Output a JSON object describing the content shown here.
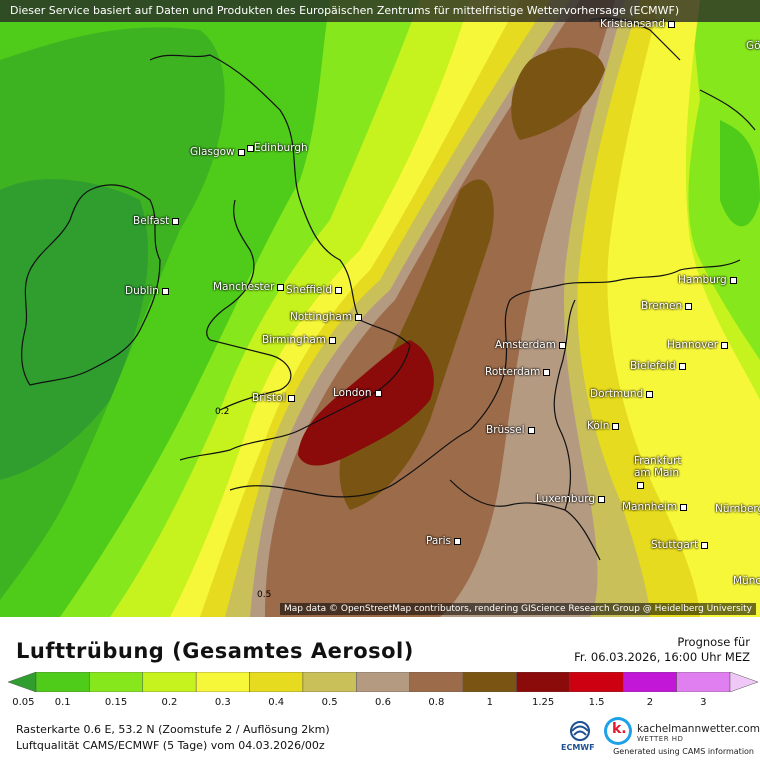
{
  "header": {
    "banner": "Dieser Service basiert auf Daten und Produkten des Europäischen Zentrums für mittelfristige Wettervorhersage (ECMWF)"
  },
  "map": {
    "attribution": "Map data © OpenStreetMap contributors, rendering GIScience Research Group @ Heidelberg University",
    "cities": [
      {
        "name": "Kristiansand"
      },
      {
        "name": "Gö"
      },
      {
        "name": "Glasgow"
      },
      {
        "name": "Edinburgh"
      },
      {
        "name": "Belfast"
      },
      {
        "name": "Dublin"
      },
      {
        "name": "Manchester"
      },
      {
        "name": "Sheffield"
      },
      {
        "name": "Nottingham"
      },
      {
        "name": "Birmingham"
      },
      {
        "name": "Bristol"
      },
      {
        "name": "London"
      },
      {
        "name": "Amsterdam"
      },
      {
        "name": "Rotterdam"
      },
      {
        "name": "Brüssel"
      },
      {
        "name": "Luxemburg"
      },
      {
        "name": "Paris"
      },
      {
        "name": "Hamburg"
      },
      {
        "name": "Bremen"
      },
      {
        "name": "Hannover"
      },
      {
        "name": "Bielefeld"
      },
      {
        "name": "Dortmund"
      },
      {
        "name": "Köln"
      },
      {
        "name": "Frankfurt am Main"
      },
      {
        "name": "Mannheim"
      },
      {
        "name": "Stuttgart"
      },
      {
        "name": "Nürnberg"
      },
      {
        "name": "Münc"
      }
    ],
    "isolines": [
      {
        "value": "0.2"
      },
      {
        "value": "0.5"
      }
    ]
  },
  "legend": {
    "title": "Lufttrübung (Gesamtes Aerosol)",
    "forecast_label": "Prognose für",
    "forecast_time": "Fr. 06.03.2026, 16:00 Uhr MEZ",
    "scale": [
      {
        "label": "0.05",
        "color": "#2f9e2f"
      },
      {
        "label": "0.1",
        "color": "#4fcc1a"
      },
      {
        "label": "0.15",
        "color": "#86e81c"
      },
      {
        "label": "0.2",
        "color": "#c6f21e"
      },
      {
        "label": "0.3",
        "color": "#f7f73a"
      },
      {
        "label": "0.4",
        "color": "#e6db1e"
      },
      {
        "label": "0.5",
        "color": "#c9c05a"
      },
      {
        "label": "0.6",
        "color": "#b59a82"
      },
      {
        "label": "0.8",
        "color": "#9c6b4a"
      },
      {
        "label": "1",
        "color": "#7a5412"
      },
      {
        "label": "1.25",
        "color": "#8b0a0a"
      },
      {
        "label": "1.5",
        "color": "#cc0010"
      },
      {
        "label": "2",
        "color": "#c217d6"
      },
      {
        "label": "3",
        "color": "#e07ff0"
      },
      {
        "label": "",
        "color": "#f0c8f7"
      }
    ],
    "raster_info": "Rasterkarte 0.6 E, 53.2 N (Zoomstufe 2 / Auflösung 2km)",
    "source_info": "Luftqualität CAMS/ECMWF (5 Tage) vom 04.03.2026/00z",
    "ecmwf_label": "ECMWF",
    "brand": "kachelmannwetter.com",
    "brand_sub": "WETTER HD",
    "generated": "Generated using CAMS information"
  }
}
